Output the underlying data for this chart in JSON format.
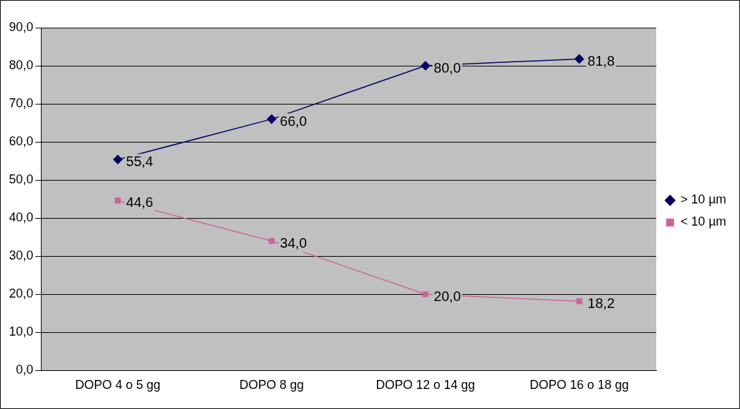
{
  "chart_data": {
    "type": "line",
    "categories": [
      "DOPO 4 o 5 gg",
      "DOPO 8 gg",
      "DOPO 12 o 14 gg",
      "DOPO 16 o 18 gg"
    ],
    "series": [
      {
        "name": "> 10 µm",
        "color": "#000066",
        "marker": "diamond",
        "values": [
          55.4,
          66.0,
          80.0,
          81.8
        ],
        "value_labels": [
          "55,4",
          "66,0",
          "80,0",
          "81,8"
        ]
      },
      {
        "name": "< 10 µm",
        "color": "#cc6699",
        "marker": "square",
        "values": [
          44.6,
          34.0,
          20.0,
          18.2
        ],
        "value_labels": [
          "44,6",
          "34,0",
          "20,0",
          "18,2"
        ]
      }
    ],
    "ylim": [
      0,
      90
    ],
    "yticks": [
      {
        "value": 0,
        "label": "0,0"
      },
      {
        "value": 10,
        "label": "10,0"
      },
      {
        "value": 20,
        "label": "20,0"
      },
      {
        "value": 30,
        "label": "30,0"
      },
      {
        "value": 40,
        "label": "40,0"
      },
      {
        "value": 50,
        "label": "50,0"
      },
      {
        "value": 60,
        "label": "60,0"
      },
      {
        "value": 70,
        "label": "70,0"
      },
      {
        "value": 80,
        "label": "80,0"
      },
      {
        "value": 90,
        "label": "90,0"
      }
    ],
    "grid": "y",
    "legend": "right",
    "line_style": "solid"
  }
}
